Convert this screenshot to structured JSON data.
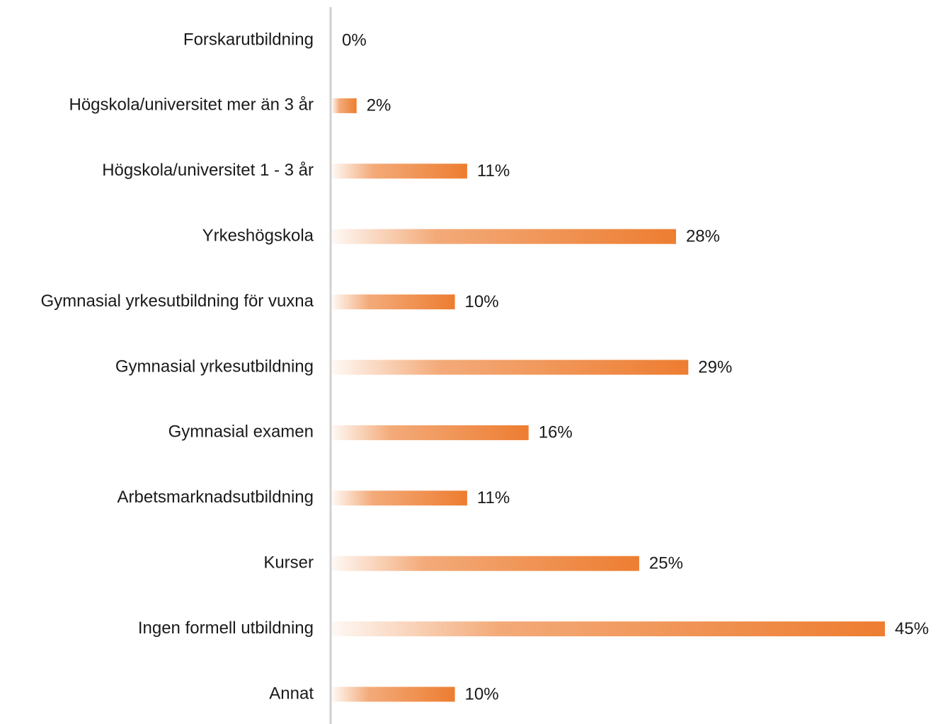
{
  "chart_data": {
    "type": "bar",
    "orientation": "horizontal",
    "categories": [
      "Forskarutbildning",
      "Högskola/universitet mer än 3 år",
      "Högskola/universitet 1 - 3 år",
      "Yrkeshögskola",
      "Gymnasial yrkesutbildning för vuxna",
      "Gymnasial yrkesutbildning",
      "Gymnasial examen",
      "Arbetsmarknadsutbildning",
      "Kurser",
      "Ingen formell utbildning",
      "Annat"
    ],
    "values": [
      0,
      2,
      11,
      28,
      10,
      29,
      16,
      11,
      25,
      45,
      10
    ],
    "value_labels": [
      "0%",
      "2%",
      "11%",
      "28%",
      "10%",
      "29%",
      "16%",
      "11%",
      "25%",
      "45%",
      "10%"
    ],
    "color": "#ed7d31"
  }
}
